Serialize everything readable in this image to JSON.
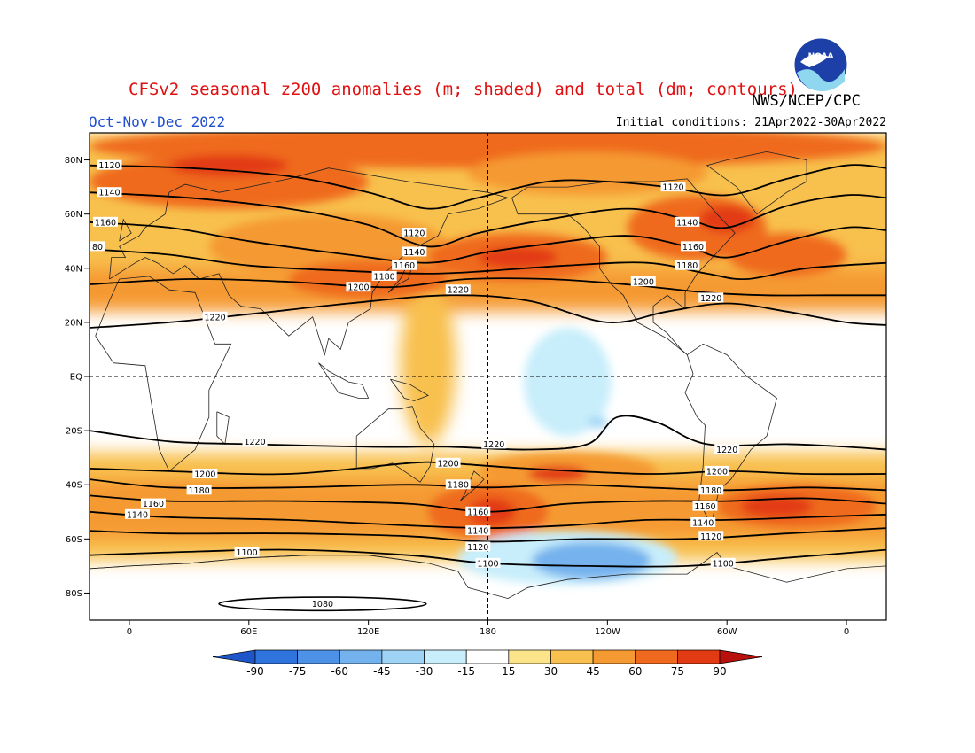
{
  "header": {
    "title": "CFSv2 seasonal z200 anomalies (m; shaded) and total (dm; contours)",
    "organization": "NWS/NCEP/CPC",
    "season": "Oct-Nov-Dec 2022",
    "initial_conditions": "Initial conditions: 21Apr2022-30Apr2022",
    "logo_text": "NOAA"
  },
  "map": {
    "lat_labels": [
      {
        "lat": 80,
        "label": "80N"
      },
      {
        "lat": 60,
        "label": "60N"
      },
      {
        "lat": 40,
        "label": "40N"
      },
      {
        "lat": 20,
        "label": "20N"
      },
      {
        "lat": 0,
        "label": "EQ"
      },
      {
        "lat": -20,
        "label": "20S"
      },
      {
        "lat": -40,
        "label": "40S"
      },
      {
        "lat": -60,
        "label": "60S"
      },
      {
        "lat": -80,
        "label": "80S"
      }
    ],
    "lon_labels": [
      {
        "lon": 0,
        "label": "0"
      },
      {
        "lon": 60,
        "label": "60E"
      },
      {
        "lon": 120,
        "label": "120E"
      },
      {
        "lon": 180,
        "label": "180"
      },
      {
        "lon": 240,
        "label": "120W"
      },
      {
        "lon": 300,
        "label": "60W"
      },
      {
        "lon": 360,
        "label": "0"
      }
    ],
    "contours": [
      {
        "value": "1120",
        "pts": [
          [
            -20,
            78
          ],
          [
            30,
            77
          ],
          [
            80,
            74
          ],
          [
            120,
            68
          ],
          [
            150,
            62
          ],
          [
            175,
            66
          ],
          [
            210,
            72
          ],
          [
            240,
            72
          ],
          [
            270,
            70
          ],
          [
            300,
            67
          ],
          [
            330,
            73
          ],
          [
            360,
            78
          ],
          [
            380,
            77
          ]
        ]
      },
      {
        "value": "1140",
        "pts": [
          [
            -20,
            68
          ],
          [
            30,
            66
          ],
          [
            80,
            62
          ],
          [
            120,
            56
          ],
          [
            150,
            48
          ],
          [
            175,
            53
          ],
          [
            210,
            58
          ],
          [
            250,
            62
          ],
          [
            280,
            58
          ],
          [
            300,
            55
          ],
          [
            330,
            63
          ],
          [
            360,
            67
          ],
          [
            380,
            66
          ]
        ]
      },
      {
        "value": "1160",
        "pts": [
          [
            -20,
            57
          ],
          [
            20,
            55
          ],
          [
            60,
            50
          ],
          [
            110,
            45
          ],
          [
            150,
            42
          ],
          [
            180,
            46
          ],
          [
            210,
            49
          ],
          [
            250,
            52
          ],
          [
            280,
            48
          ],
          [
            300,
            44
          ],
          [
            330,
            50
          ],
          [
            360,
            55
          ],
          [
            380,
            54
          ]
        ]
      },
      {
        "value": "1180",
        "pts": [
          [
            -20,
            47
          ],
          [
            20,
            45
          ],
          [
            60,
            41
          ],
          [
            110,
            39
          ],
          [
            150,
            38
          ],
          [
            180,
            39
          ],
          [
            220,
            41
          ],
          [
            260,
            42
          ],
          [
            290,
            38
          ],
          [
            310,
            36
          ],
          [
            340,
            40
          ],
          [
            380,
            42
          ]
        ]
      },
      {
        "value": "1200",
        "pts": [
          [
            -20,
            34
          ],
          [
            30,
            36
          ],
          [
            80,
            35
          ],
          [
            130,
            33
          ],
          [
            170,
            36
          ],
          [
            210,
            36
          ],
          [
            250,
            34
          ],
          [
            290,
            31
          ],
          [
            320,
            30
          ],
          [
            350,
            30
          ],
          [
            380,
            30
          ]
        ]
      },
      {
        "value": "1220",
        "pts": [
          [
            -20,
            18
          ],
          [
            20,
            20
          ],
          [
            60,
            23
          ],
          [
            110,
            27
          ],
          [
            160,
            30
          ],
          [
            200,
            28
          ],
          [
            240,
            20
          ],
          [
            270,
            24
          ],
          [
            300,
            27
          ],
          [
            330,
            24
          ],
          [
            360,
            20
          ],
          [
            380,
            19
          ]
        ]
      },
      {
        "value": "1220",
        "pts": [
          [
            -20,
            -20
          ],
          [
            20,
            -24
          ],
          [
            60,
            -25
          ],
          [
            120,
            -26
          ],
          [
            160,
            -26
          ],
          [
            200,
            -27
          ],
          [
            230,
            -25
          ],
          [
            245,
            -15
          ],
          [
            265,
            -17
          ],
          [
            290,
            -25
          ],
          [
            330,
            -25
          ],
          [
            360,
            -26
          ],
          [
            380,
            -27
          ]
        ]
      },
      {
        "value": "1200",
        "pts": [
          [
            -20,
            -34
          ],
          [
            20,
            -35
          ],
          [
            80,
            -36
          ],
          [
            140,
            -32
          ],
          [
            160,
            -32
          ],
          [
            200,
            -34
          ],
          [
            260,
            -36
          ],
          [
            300,
            -35
          ],
          [
            340,
            -36
          ],
          [
            380,
            -36
          ]
        ]
      },
      {
        "value": "1180",
        "pts": [
          [
            -20,
            -38
          ],
          [
            20,
            -41
          ],
          [
            80,
            -41
          ],
          [
            140,
            -40
          ],
          [
            180,
            -41
          ],
          [
            220,
            -40
          ],
          [
            260,
            -41
          ],
          [
            300,
            -42
          ],
          [
            340,
            -41
          ],
          [
            380,
            -42
          ]
        ]
      },
      {
        "value": "1160",
        "pts": [
          [
            -20,
            -44
          ],
          [
            20,
            -46
          ],
          [
            80,
            -46
          ],
          [
            140,
            -47
          ],
          [
            180,
            -50
          ],
          [
            220,
            -47
          ],
          [
            260,
            -46
          ],
          [
            300,
            -46
          ],
          [
            340,
            -45
          ],
          [
            380,
            -47
          ]
        ]
      },
      {
        "value": "1140",
        "pts": [
          [
            -20,
            -50
          ],
          [
            20,
            -52
          ],
          [
            80,
            -53
          ],
          [
            140,
            -55
          ],
          [
            180,
            -56
          ],
          [
            220,
            -55
          ],
          [
            260,
            -53
          ],
          [
            300,
            -53
          ],
          [
            340,
            -52
          ],
          [
            380,
            -51
          ]
        ]
      },
      {
        "value": "1120",
        "pts": [
          [
            -20,
            -57
          ],
          [
            20,
            -58
          ],
          [
            80,
            -58
          ],
          [
            140,
            -59
          ],
          [
            180,
            -61
          ],
          [
            230,
            -60
          ],
          [
            280,
            -60
          ],
          [
            330,
            -58
          ],
          [
            380,
            -56
          ]
        ]
      },
      {
        "value": "1100",
        "pts": [
          [
            -20,
            -66
          ],
          [
            20,
            -65
          ],
          [
            80,
            -64
          ],
          [
            140,
            -66
          ],
          [
            180,
            -69
          ],
          [
            230,
            -70
          ],
          [
            280,
            -70
          ],
          [
            330,
            -67
          ],
          [
            380,
            -64
          ]
        ]
      }
    ],
    "contour_labels": [
      {
        "lon": -10,
        "lat": 78,
        "text": "1120"
      },
      {
        "lon": -10,
        "lat": 68,
        "text": "1140"
      },
      {
        "lon": -12,
        "lat": 57,
        "text": "1160"
      },
      {
        "lon": -16,
        "lat": 48,
        "text": "80"
      },
      {
        "lon": 143,
        "lat": 53,
        "text": "1120"
      },
      {
        "lon": 143,
        "lat": 46,
        "text": "1140"
      },
      {
        "lon": 138,
        "lat": 41,
        "text": "1160"
      },
      {
        "lon": 128,
        "lat": 37,
        "text": "1180"
      },
      {
        "lon": 115,
        "lat": 33,
        "text": "1200"
      },
      {
        "lon": 165,
        "lat": 32,
        "text": "1220"
      },
      {
        "lon": 43,
        "lat": 22,
        "text": "1220"
      },
      {
        "lon": 273,
        "lat": 70,
        "text": "1120"
      },
      {
        "lon": 280,
        "lat": 57,
        "text": "1140"
      },
      {
        "lon": 283,
        "lat": 48,
        "text": "1160"
      },
      {
        "lon": 280,
        "lat": 41,
        "text": "1180"
      },
      {
        "lon": 258,
        "lat": 35,
        "text": "1200"
      },
      {
        "lon": 292,
        "lat": 29,
        "text": "1220"
      },
      {
        "lon": 63,
        "lat": -24,
        "text": "1220"
      },
      {
        "lon": 183,
        "lat": -25,
        "text": "1220"
      },
      {
        "lon": 300,
        "lat": -27,
        "text": "1220"
      },
      {
        "lon": 38,
        "lat": -36,
        "text": "1200"
      },
      {
        "lon": 160,
        "lat": -32,
        "text": "1200"
      },
      {
        "lon": 295,
        "lat": -35,
        "text": "1200"
      },
      {
        "lon": 35,
        "lat": -42,
        "text": "1180"
      },
      {
        "lon": 165,
        "lat": -40,
        "text": "1180"
      },
      {
        "lon": 292,
        "lat": -42,
        "text": "1180"
      },
      {
        "lon": 12,
        "lat": -47,
        "text": "1160"
      },
      {
        "lon": 175,
        "lat": -50,
        "text": "1160"
      },
      {
        "lon": 289,
        "lat": -48,
        "text": "1160"
      },
      {
        "lon": 4,
        "lat": -51,
        "text": "1140"
      },
      {
        "lon": 175,
        "lat": -57,
        "text": "1140"
      },
      {
        "lon": 288,
        "lat": -54,
        "text": "1140"
      },
      {
        "lon": 175,
        "lat": -63,
        "text": "1120"
      },
      {
        "lon": 292,
        "lat": -59,
        "text": "1120"
      },
      {
        "lon": 59,
        "lat": -65,
        "text": "1100"
      },
      {
        "lon": 180,
        "lat": -69,
        "text": "1100"
      },
      {
        "lon": 298,
        "lat": -69,
        "text": "1100"
      },
      {
        "lon": 97,
        "lat": -84,
        "text": "1080"
      }
    ],
    "anomaly_patches": [
      {
        "lon": 180,
        "lat": 85,
        "rx": 200,
        "ry": 8,
        "level": 60
      },
      {
        "lon": 50,
        "lat": 72,
        "rx": 70,
        "ry": 10,
        "level": 60
      },
      {
        "lon": 230,
        "lat": 75,
        "rx": 60,
        "ry": 8,
        "level": 45
      },
      {
        "lon": 100,
        "lat": 48,
        "rx": 60,
        "ry": 12,
        "level": 45
      },
      {
        "lon": 120,
        "lat": 36,
        "rx": 40,
        "ry": 7,
        "level": 60
      },
      {
        "lon": 195,
        "lat": 44,
        "rx": 45,
        "ry": 9,
        "level": 60
      },
      {
        "lon": 285,
        "lat": 55,
        "rx": 35,
        "ry": 12,
        "level": 60
      },
      {
        "lon": 330,
        "lat": 45,
        "rx": 30,
        "ry": 8,
        "level": 60
      },
      {
        "lon": 220,
        "lat": -35,
        "rx": 45,
        "ry": 7,
        "level": 45
      },
      {
        "lon": 180,
        "lat": -50,
        "rx": 30,
        "ry": 10,
        "level": 60
      },
      {
        "lon": 335,
        "lat": -48,
        "rx": 40,
        "ry": 8,
        "level": 60
      },
      {
        "lon": 30,
        "lat": -46,
        "rx": 45,
        "ry": 6,
        "level": 45
      }
    ],
    "negative_patches": [
      {
        "lon": 220,
        "lat": -2,
        "rx": 22,
        "ry": 20,
        "level": -15
      },
      {
        "lon": 220,
        "lat": -67,
        "rx": 55,
        "ry": 10,
        "level": -15
      },
      {
        "lon": 232,
        "lat": -68,
        "rx": 30,
        "ry": 7,
        "level": -45
      },
      {
        "lon": 235,
        "lat": -17,
        "rx": 5,
        "ry": 2,
        "level": -30
      }
    ]
  },
  "colorbar": {
    "labels": [
      "-90",
      "-75",
      "-60",
      "-45",
      "-30",
      "-15",
      "15",
      "30",
      "45",
      "60",
      "75",
      "90"
    ],
    "colors": [
      "#1d56c8",
      "#2f73dc",
      "#4d92e6",
      "#74b2ee",
      "#9ed3f5",
      "#c8eefb",
      "#ffffff",
      "#fbe48a",
      "#f8c04e",
      "#f59a32",
      "#ef6a1f",
      "#e23a12",
      "#b8110c"
    ]
  }
}
